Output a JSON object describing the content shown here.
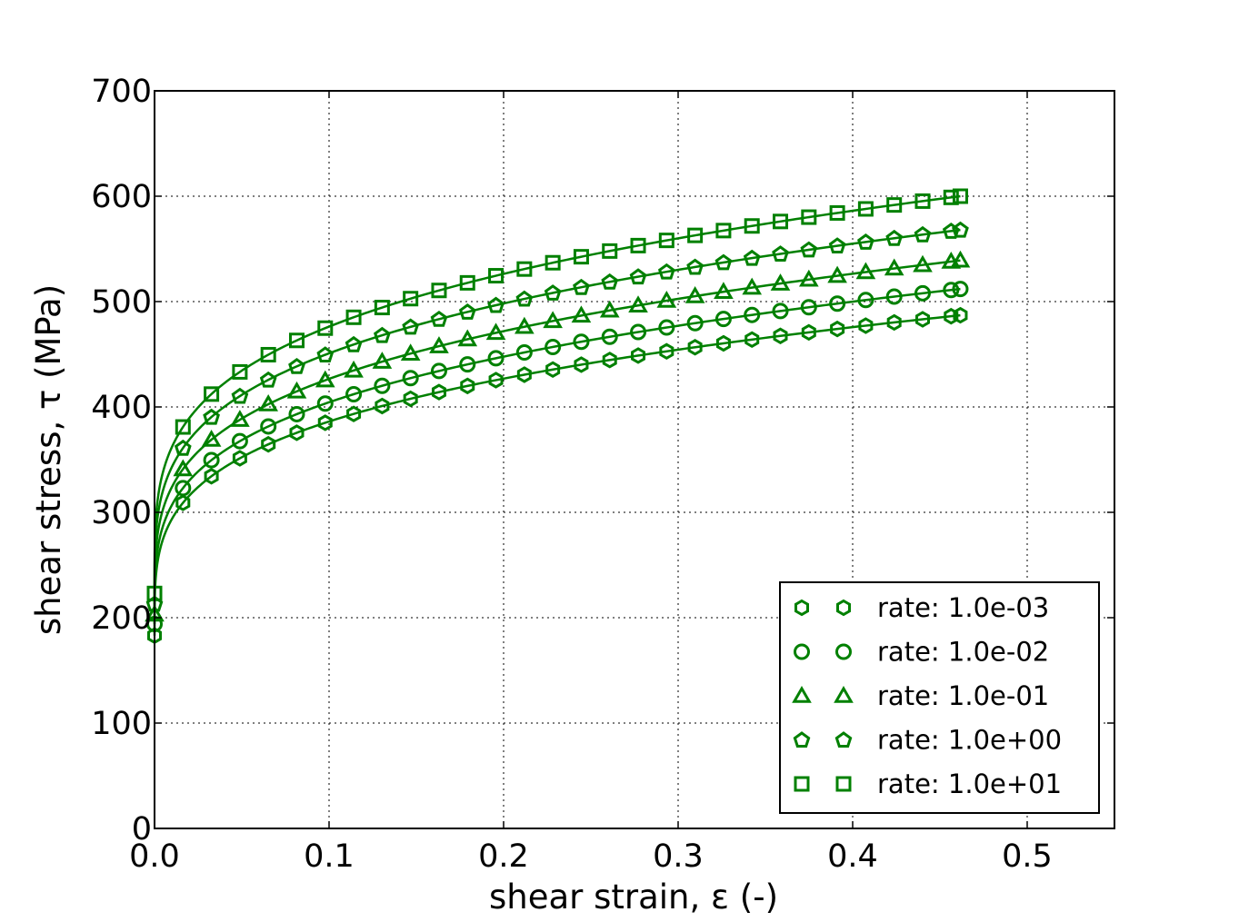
{
  "chart_data": {
    "type": "line",
    "title": "",
    "xlabel": "shear strain, ε (-)",
    "ylabel": "shear stress, τ (MPa)",
    "xlim": [
      0.0,
      0.55
    ],
    "ylim": [
      0,
      700
    ],
    "xticks": [
      0.0,
      0.1,
      0.2,
      0.3,
      0.4,
      0.5
    ],
    "xtick_labels": [
      "0.0",
      "0.1",
      "0.2",
      "0.3",
      "0.4",
      "0.5"
    ],
    "yticks": [
      0,
      100,
      200,
      300,
      400,
      500,
      600,
      700
    ],
    "ytick_labels": [
      "0",
      "100",
      "200",
      "300",
      "400",
      "500",
      "600",
      "700"
    ],
    "grid": true,
    "legend_position": "lower-right",
    "color": "#008000",
    "x": [
      0.0,
      0.0163,
      0.0326,
      0.0489,
      0.0652,
      0.0815,
      0.0978,
      0.1141,
      0.1304,
      0.1467,
      0.163,
      0.1793,
      0.1956,
      0.2119,
      0.2282,
      0.2445,
      0.2608,
      0.2771,
      0.2934,
      0.3097,
      0.326,
      0.3423,
      0.3586,
      0.3749,
      0.3912,
      0.4075,
      0.4238,
      0.4401,
      0.4564,
      0.4617
    ],
    "series": [
      {
        "name": "rate: 1.0e-03",
        "marker": "hexagon",
        "y0": 183,
        "y1": 309,
        "yend": 487
      },
      {
        "name": "rate: 1.0e-02",
        "marker": "circle",
        "y0": 194,
        "y1": 323,
        "yend": 512
      },
      {
        "name": "rate: 1.0e-01",
        "marker": "triangle",
        "y0": 203,
        "y1": 341,
        "yend": 539
      },
      {
        "name": "rate: 1.0e+00",
        "marker": "pentagon",
        "y0": 213,
        "y1": 361,
        "yend": 568
      },
      {
        "name": "rate: 1.0e+01",
        "marker": "square",
        "y0": 223,
        "y1": 381,
        "yend": 600
      }
    ]
  }
}
